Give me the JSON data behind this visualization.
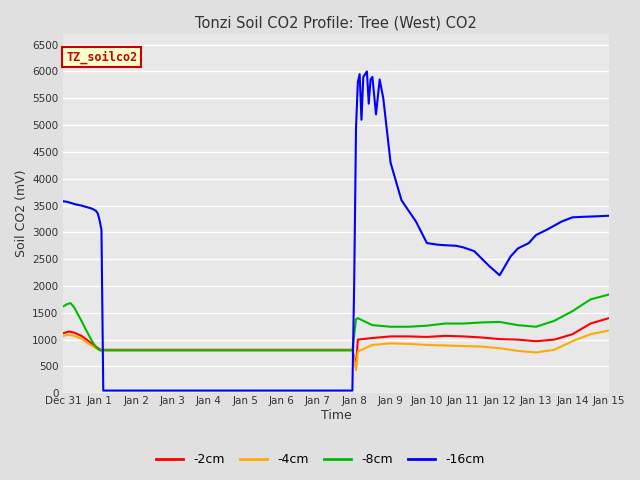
{
  "title": "Tonzi Soil CO2 Profile: Tree (West) CO2",
  "xlabel": "Time",
  "ylabel": "Soil CO2 (mV)",
  "ylim": [
    0,
    6700
  ],
  "yticks": [
    0,
    500,
    1000,
    1500,
    2000,
    2500,
    3000,
    3500,
    4000,
    4500,
    5000,
    5500,
    6000,
    6500
  ],
  "bg_color": "#e0e0e0",
  "plot_bg": "#e8e8e8",
  "legend_label": "TZ_soilco2",
  "legend_box_color": "#ffffcc",
  "legend_box_edge": "#cc0000",
  "series_colors": [
    "#ff0000",
    "#ffaa00",
    "#00bb00",
    "#0000ff"
  ],
  "series_labels": [
    "-2cm",
    "-4cm",
    "-8cm",
    "-16cm"
  ],
  "x_tick_labels": [
    "Dec 31",
    "Jan 1",
    "Jan 2",
    "Jan 3",
    "Jan 4",
    "Jan 5",
    "Jan 6",
    "Jan 7",
    "Jan 8",
    "Jan 9",
    "Jan 10",
    "Jan 11",
    "Jan 12",
    "Jan 13",
    "Jan 14",
    "Jan 15"
  ],
  "blue_x": [
    0.0,
    0.1,
    0.2,
    0.35,
    0.5,
    0.65,
    0.8,
    0.9,
    0.95,
    1.0,
    1.02,
    1.05,
    1.1,
    1.5,
    2.0,
    3.0,
    4.0,
    5.0,
    6.0,
    7.0,
    7.5,
    7.8,
    7.95,
    8.0,
    8.05,
    8.1,
    8.15,
    8.2,
    8.25,
    8.3,
    8.35,
    8.4,
    8.45,
    8.5,
    8.6,
    8.7,
    8.8,
    9.0,
    9.3,
    9.7,
    10.0,
    10.3,
    10.5,
    10.8,
    11.0,
    11.3,
    11.7,
    12.0,
    12.3,
    12.5,
    12.8,
    13.0,
    13.3,
    13.7,
    14.0,
    14.3,
    14.7,
    15.0
  ],
  "blue_y": [
    3580,
    3570,
    3550,
    3520,
    3500,
    3470,
    3440,
    3400,
    3350,
    3220,
    3150,
    3050,
    50,
    50,
    50,
    50,
    50,
    50,
    50,
    50,
    50,
    50,
    50,
    2060,
    4950,
    5800,
    5950,
    5100,
    5900,
    5950,
    6000,
    5400,
    5850,
    5900,
    5200,
    5850,
    5500,
    4300,
    3600,
    3200,
    2800,
    2770,
    2760,
    2750,
    2720,
    2650,
    2380,
    2200,
    2550,
    2700,
    2800,
    2950,
    3050,
    3200,
    3280,
    3290,
    3300,
    3310
  ],
  "red_x": [
    0.0,
    0.15,
    0.3,
    0.5,
    0.7,
    0.85,
    1.0,
    1.05,
    1.1,
    1.5,
    2.0,
    3.0,
    4.0,
    5.0,
    6.0,
    7.0,
    7.5,
    7.95,
    8.05,
    8.1,
    8.5,
    9.0,
    9.5,
    10.0,
    10.5,
    11.0,
    11.5,
    12.0,
    12.5,
    13.0,
    13.5,
    14.0,
    14.5,
    15.0
  ],
  "red_y": [
    1120,
    1150,
    1130,
    1070,
    970,
    890,
    820,
    810,
    810,
    810,
    810,
    810,
    810,
    810,
    810,
    810,
    810,
    810,
    500,
    1000,
    1030,
    1060,
    1060,
    1050,
    1070,
    1060,
    1040,
    1010,
    1000,
    970,
    1000,
    1100,
    1300,
    1400
  ],
  "orange_x": [
    0.0,
    0.15,
    0.3,
    0.5,
    0.7,
    0.85,
    1.0,
    1.05,
    1.1,
    1.5,
    2.0,
    3.0,
    4.0,
    5.0,
    6.0,
    7.0,
    7.5,
    7.95,
    8.05,
    8.1,
    8.5,
    9.0,
    9.5,
    10.0,
    10.5,
    11.0,
    11.5,
    12.0,
    12.5,
    13.0,
    13.5,
    14.0,
    14.5,
    15.0
  ],
  "orange_y": [
    1070,
    1090,
    1070,
    1020,
    920,
    860,
    810,
    800,
    800,
    800,
    800,
    800,
    800,
    800,
    800,
    800,
    800,
    800,
    430,
    780,
    900,
    930,
    920,
    900,
    890,
    880,
    870,
    840,
    790,
    760,
    810,
    970,
    1100,
    1170
  ],
  "green_x": [
    0.0,
    0.1,
    0.2,
    0.3,
    0.5,
    0.65,
    0.8,
    0.9,
    1.0,
    1.05,
    1.1,
    1.5,
    2.0,
    3.0,
    4.0,
    5.0,
    6.0,
    7.0,
    7.5,
    7.95,
    8.05,
    8.1,
    8.5,
    9.0,
    9.5,
    10.0,
    10.5,
    11.0,
    11.5,
    12.0,
    12.5,
    13.0,
    13.5,
    14.0,
    14.5,
    15.0
  ],
  "green_y": [
    1620,
    1660,
    1680,
    1600,
    1350,
    1150,
    960,
    860,
    800,
    800,
    800,
    800,
    800,
    800,
    800,
    800,
    800,
    800,
    800,
    800,
    1380,
    1400,
    1270,
    1240,
    1240,
    1260,
    1300,
    1300,
    1320,
    1330,
    1270,
    1240,
    1350,
    1530,
    1750,
    1840
  ]
}
